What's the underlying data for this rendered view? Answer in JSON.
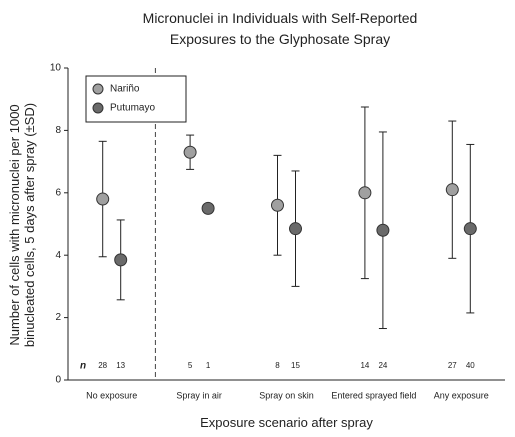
{
  "chart_data": {
    "type": "errorbar",
    "title": "Micronuclei in Individuals with Self-Reported Exposures to the Glyphosate Spray",
    "x_label": "Exposure scenario after spray",
    "y_label": "Number of cells with micronuclei per 1000 binucleated cells, 5 days after spray (±SD)",
    "categories": [
      "No exposure",
      "Spray in air",
      "Spray on skin",
      "Entered sprayed field",
      "Any exposure"
    ],
    "n_label": "n",
    "series": [
      {
        "name": "Nariño",
        "color": "#a0a0a0",
        "values": [
          5.8,
          7.3,
          5.6,
          6.0,
          6.1
        ],
        "errors": [
          1.85,
          0.55,
          1.6,
          2.75,
          2.2
        ],
        "n": [
          28,
          5,
          8,
          14,
          27
        ]
      },
      {
        "name": "Putumayo",
        "color": "#6a6a6a",
        "values": [
          3.85,
          5.5,
          4.85,
          4.8,
          4.85
        ],
        "errors": [
          1.28,
          null,
          1.85,
          3.15,
          2.7
        ],
        "n": [
          13,
          1,
          15,
          24,
          40
        ]
      }
    ],
    "ylim": [
      0,
      10
    ],
    "yticks": [
      0,
      2,
      4,
      6,
      8,
      10
    ],
    "legend": "upper left"
  }
}
